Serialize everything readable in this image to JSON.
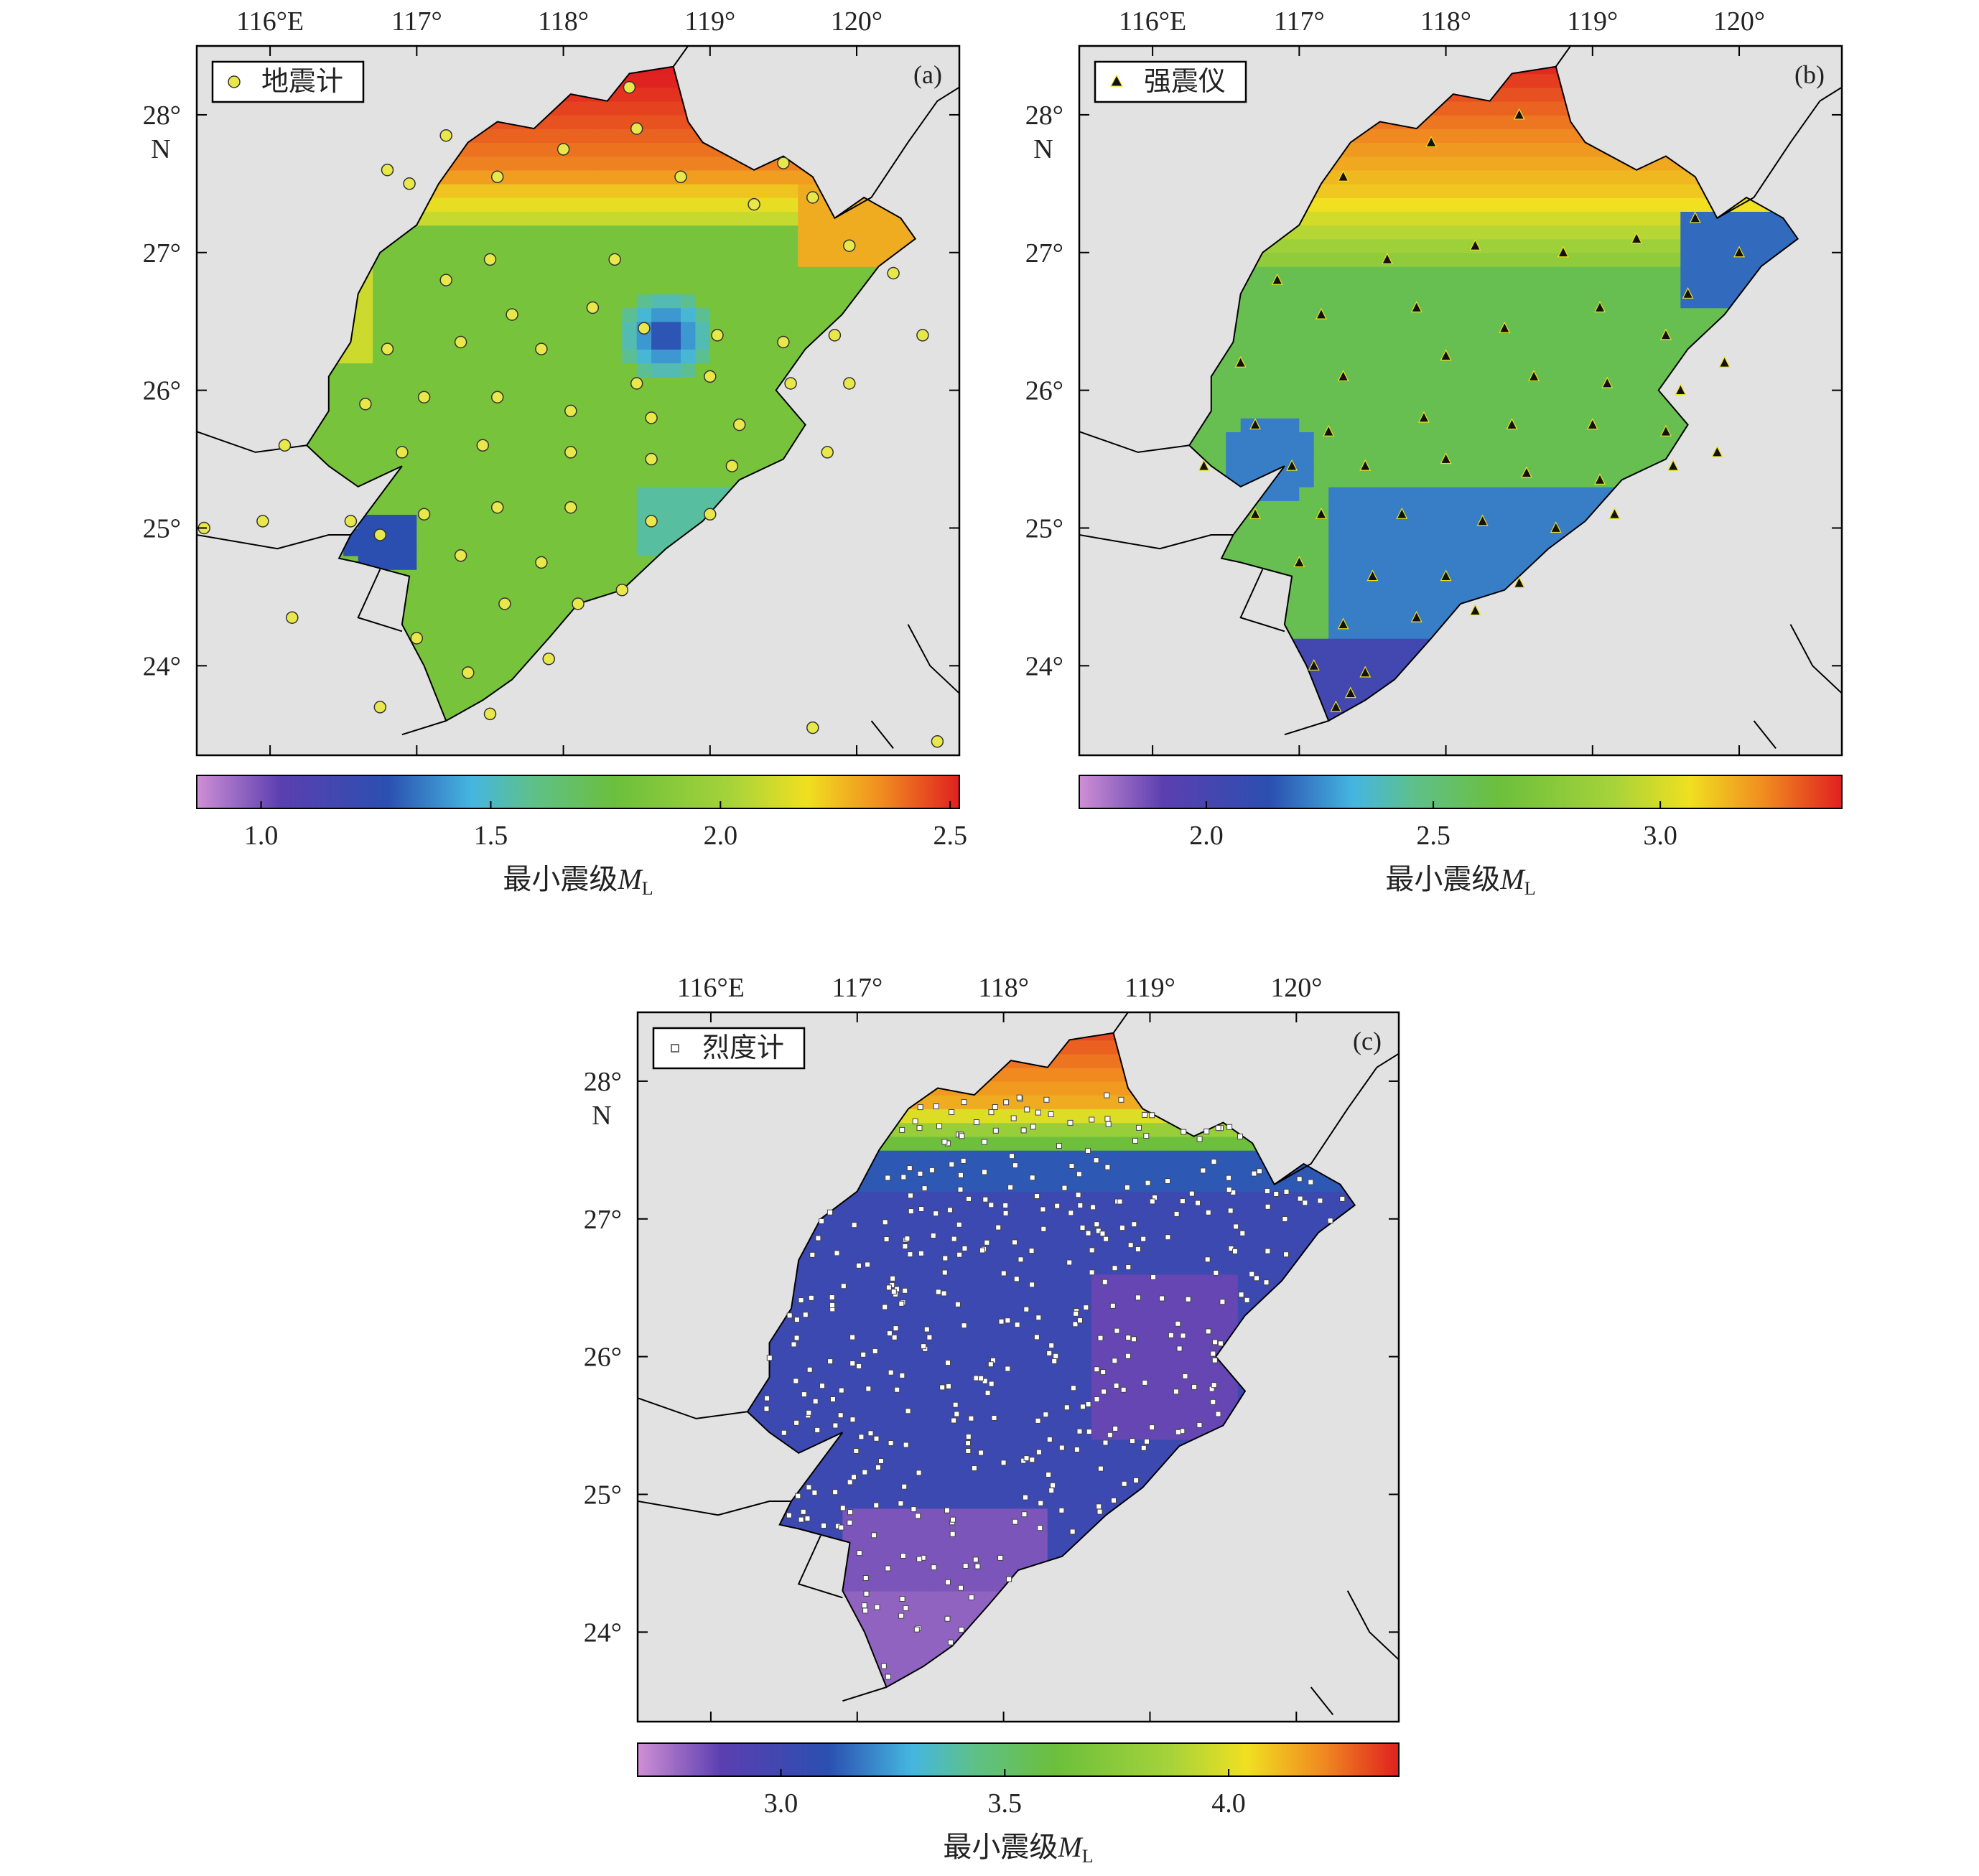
{
  "panels": [
    {
      "id": "a",
      "label": "(a)",
      "legend": "地震计",
      "marker": "circle",
      "lon_ticks": [
        "116°E",
        "117°",
        "118°",
        "119°",
        "120°"
      ],
      "lat_ticks": [
        "28°",
        "27°",
        "26°",
        "25°",
        "24°"
      ],
      "lat_unit": "N",
      "colorbar_ticks": [
        "1.0",
        "1.5",
        "2.0",
        "2.5"
      ],
      "colorbar_label": "最小震级",
      "colorbar_symbol": "M",
      "colorbar_subscript": "L",
      "colorbar_range": [
        0.86,
        2.52
      ]
    },
    {
      "id": "b",
      "label": "(b)",
      "legend": "强震仪",
      "marker": "triangle",
      "lon_ticks": [
        "116°E",
        "117°",
        "118°",
        "119°",
        "120°"
      ],
      "lat_ticks": [
        "28°",
        "27°",
        "26°",
        "25°",
        "24°"
      ],
      "lat_unit": "N",
      "colorbar_ticks": [
        "2.0",
        "2.5",
        "3.0"
      ],
      "colorbar_label": "最小震级",
      "colorbar_symbol": "M",
      "colorbar_subscript": "L",
      "colorbar_range": [
        1.72,
        3.4
      ]
    },
    {
      "id": "c",
      "label": "(c)",
      "legend": "烈度计",
      "marker": "square",
      "lon_ticks": [
        "116°E",
        "117°",
        "118°",
        "119°",
        "120°"
      ],
      "lat_ticks": [
        "28°",
        "27°",
        "26°",
        "25°",
        "24°"
      ],
      "lat_unit": "N",
      "colorbar_ticks": [
        "3.0",
        "3.5",
        "4.0"
      ],
      "colorbar_label": "最小震级",
      "colorbar_symbol": "M",
      "colorbar_subscript": "L",
      "colorbar_range": [
        2.68,
        4.38
      ]
    }
  ],
  "map_extent": {
    "lon": [
      115.5,
      120.7
    ],
    "lat": [
      23.35,
      28.5
    ]
  },
  "colormap": [
    "#cf8fd5",
    "#5b3fb0",
    "#2b4fb0",
    "#45b6e0",
    "#5ec08a",
    "#6cbf3c",
    "#a6d33a",
    "#f0e020",
    "#f08a20",
    "#e02020"
  ],
  "colors": {
    "ocean": "#e2e2e2",
    "border": "#000000",
    "station_circle": "#e8e84a",
    "station_triangle": "#111111",
    "station_square": "#ffffff"
  }
}
